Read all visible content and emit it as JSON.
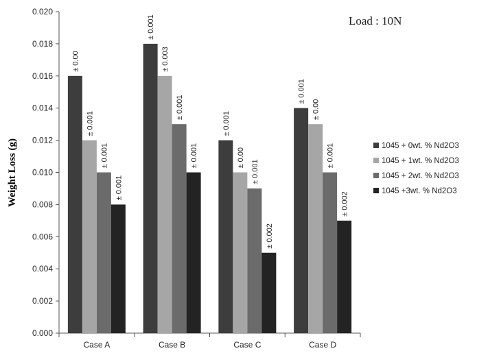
{
  "chart_data": {
    "type": "bar",
    "categories": [
      "Case A",
      "Case B",
      "Case C",
      "Case D"
    ],
    "series": [
      {
        "name": "1045 + 0wt. % Nd2O3",
        "color": "#3d3d3d",
        "values": [
          0.016,
          0.018,
          0.012,
          0.014
        ],
        "labels": [
          "± 0.00",
          "± 0.001",
          "± 0.001",
          "± 0.001"
        ]
      },
      {
        "name": "1045 + 1wt. % Nd2O3",
        "color": "#a6a6a6",
        "values": [
          0.012,
          0.016,
          0.01,
          0.013
        ],
        "labels": [
          "± 0.001",
          "± 0.003",
          "± 0.00",
          "± 0.00"
        ]
      },
      {
        "name": "1045 + 2wt. % Nd2O3",
        "color": "#6b6b6b",
        "values": [
          0.01,
          0.013,
          0.009,
          0.01
        ],
        "labels": [
          "± 0.001",
          "± 0.001",
          "± 0.001",
          "± 0.001"
        ]
      },
      {
        "name": "1045 +3wt. % Nd2O3",
        "color": "#232323",
        "values": [
          0.008,
          0.01,
          0.005,
          0.007
        ],
        "labels": [
          "± 0.001",
          "± 0.001",
          "± 0.002",
          "± 0.002"
        ]
      }
    ],
    "yticks": [
      "0.000",
      "0.002",
      "0.004",
      "0.006",
      "0.008",
      "0.010",
      "0.012",
      "0.014",
      "0.016",
      "0.018",
      "0.020"
    ],
    "ylim": [
      0,
      0.02
    ],
    "ylabel": "Weight Loss (g)",
    "xlabel": "",
    "annotation": "Load : 10N",
    "legend_position": "right",
    "grid": false
  }
}
